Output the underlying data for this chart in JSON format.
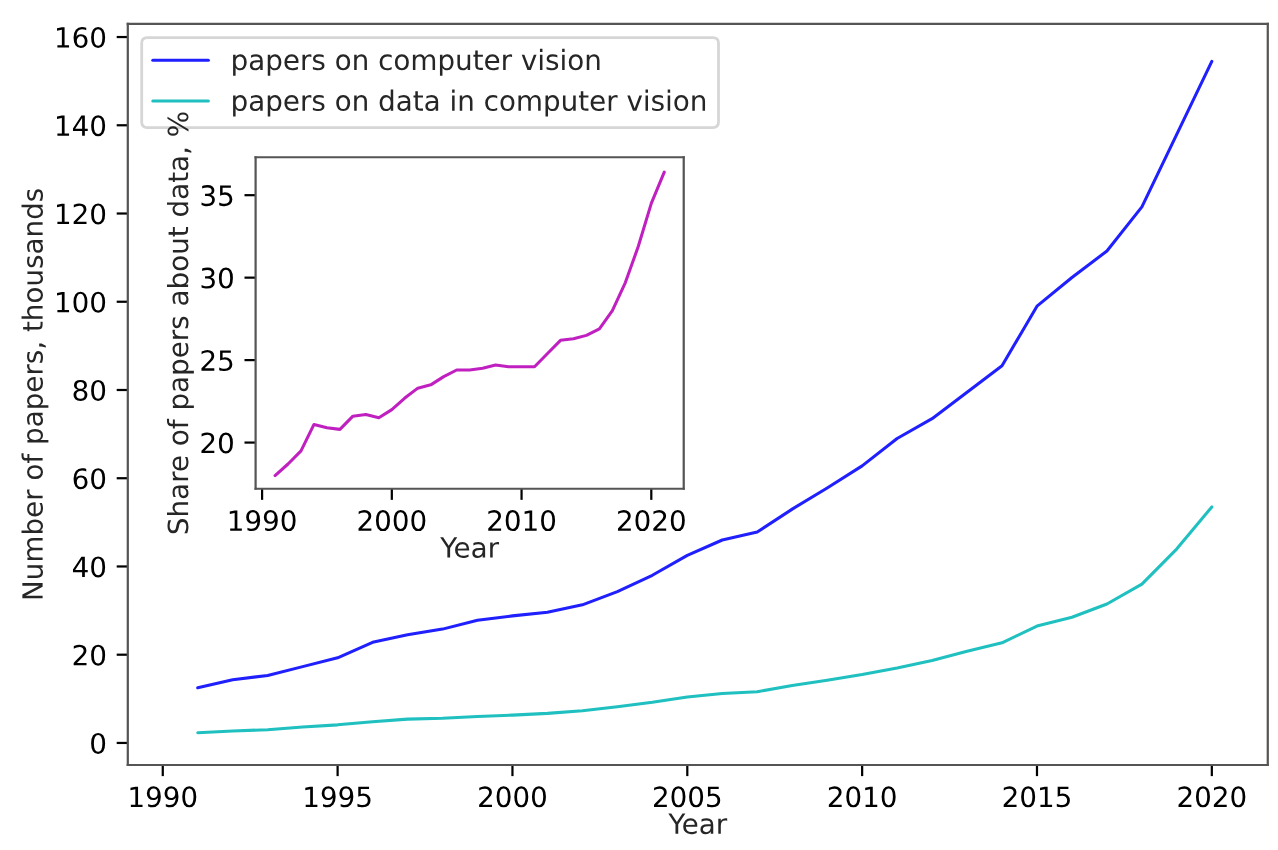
{
  "chart_data": [
    {
      "type": "line",
      "xlabel": "Year",
      "ylabel": "Number of papers, thousands",
      "x": [
        1991,
        1992,
        1993,
        1994,
        1995,
        1996,
        1997,
        1998,
        1999,
        2000,
        2001,
        2002,
        2003,
        2004,
        2005,
        2006,
        2007,
        2008,
        2009,
        2010,
        2011,
        2012,
        2013,
        2014,
        2015,
        2016,
        2017,
        2018,
        2019,
        2020
      ],
      "series": [
        {
          "name": "papers on computer vision",
          "color": "#2020ff",
          "values": [
            12.5,
            14.3,
            15.3,
            17.3,
            19.3,
            22.8,
            24.5,
            25.8,
            27.8,
            28.8,
            29.6,
            31.3,
            34.3,
            38,
            42.5,
            46,
            47.8,
            53,
            57.8,
            62.8,
            69,
            73.5,
            79.5,
            85.5,
            99,
            105.5,
            111.5,
            121.5,
            138,
            154.5
          ]
        },
        {
          "name": "papers on data in computer vision",
          "color": "#20c0c0",
          "values": [
            2.3,
            2.7,
            3,
            3.6,
            4.1,
            4.8,
            5.4,
            5.6,
            6,
            6.3,
            6.7,
            7.3,
            8.2,
            9.2,
            10.4,
            11.2,
            11.6,
            13,
            14.2,
            15.5,
            17,
            18.7,
            20.8,
            22.7,
            26.5,
            28.5,
            31.5,
            36,
            44,
            53.5
          ]
        }
      ],
      "xlim": [
        1989,
        2021.6
      ],
      "xticks": [
        1990,
        1995,
        2000,
        2005,
        2010,
        2015,
        2020
      ],
      "ylim": [
        -5,
        163
      ],
      "yticks": [
        0,
        20,
        40,
        60,
        80,
        100,
        120,
        140,
        160
      ],
      "legend": "top left",
      "grid": false
    },
    {
      "type": "line",
      "xlabel": "Year",
      "ylabel": "Share of papers about data, %",
      "x": [
        1991,
        1992,
        1993,
        1994,
        1995,
        1996,
        1997,
        1998,
        1999,
        2000,
        2001,
        2002,
        2003,
        2004,
        2005,
        2006,
        2007,
        2008,
        2009,
        2010,
        2011,
        2012,
        2013,
        2014,
        2015,
        2016,
        2017,
        2018,
        2019,
        2020,
        2021
      ],
      "series": [
        {
          "color": "#c020c0",
          "values": [
            18,
            18.7,
            19.5,
            21.1,
            20.9,
            20.8,
            21.6,
            21.7,
            21.5,
            22,
            22.7,
            23.3,
            23.5,
            24,
            24.4,
            24.4,
            24.5,
            24.7,
            24.6,
            24.6,
            24.6,
            25.4,
            26.2,
            26.3,
            26.5,
            26.9,
            28,
            29.7,
            31.9,
            34.5,
            36.4
          ]
        }
      ],
      "xlim": [
        1989.5,
        2022.5
      ],
      "xticks": [
        1990,
        2000,
        2010,
        2020
      ],
      "ylim": [
        17.2,
        37.3
      ],
      "yticks": [
        20,
        25,
        30,
        35
      ],
      "legend": false,
      "grid": false
    }
  ]
}
